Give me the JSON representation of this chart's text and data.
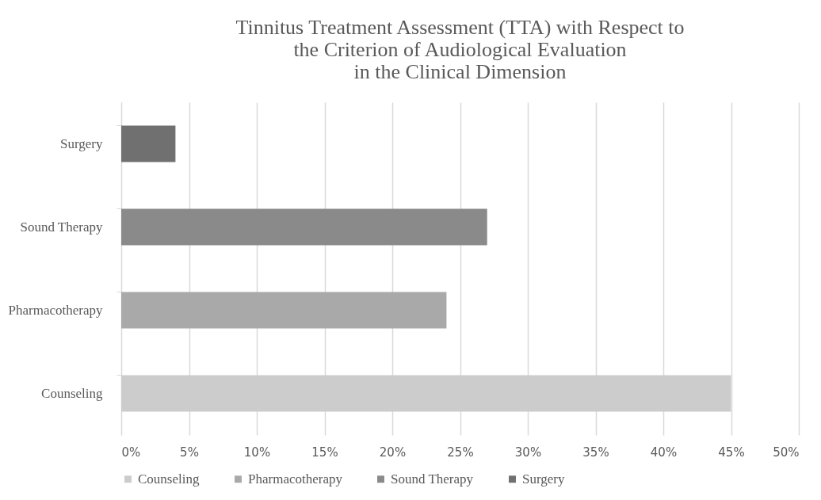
{
  "chart_data": {
    "type": "bar",
    "orientation": "horizontal",
    "title": [
      "Tinnitus Treatment Assessment (TTA) with Respect to",
      "the Criterion of Audiological Evaluation",
      "in the Clinical Dimension"
    ],
    "categories": [
      "Surgery",
      "Sound Therapy",
      "Pharmacotherapy",
      "Counseling"
    ],
    "series": [
      {
        "name": "Counseling",
        "color": "#cccccc",
        "values": [
          null,
          null,
          null,
          45
        ]
      },
      {
        "name": "Pharmacotherapy",
        "color": "#a9a9a9",
        "values": [
          null,
          null,
          24,
          null
        ]
      },
      {
        "name": "Sound Therapy",
        "color": "#8a8a8a",
        "values": [
          null,
          27,
          null,
          null
        ]
      },
      {
        "name": "Surgery",
        "color": "#707070",
        "values": [
          4,
          null,
          null,
          null
        ]
      }
    ],
    "xlim": [
      0,
      50
    ],
    "xticks": [
      {
        "value": 0,
        "label": "0%"
      },
      {
        "value": 5,
        "label": "5%"
      },
      {
        "value": 10,
        "label": "10%"
      },
      {
        "value": 15,
        "label": "15%"
      },
      {
        "value": 20,
        "label": "20%"
      },
      {
        "value": 25,
        "label": "25%"
      },
      {
        "value": 30,
        "label": "30%"
      },
      {
        "value": 35,
        "label": "35%"
      },
      {
        "value": 40,
        "label": "40%"
      },
      {
        "value": 45,
        "label": "45%"
      },
      {
        "value": 50,
        "label": "50%"
      }
    ],
    "grid": "x",
    "legend": "bottom"
  }
}
